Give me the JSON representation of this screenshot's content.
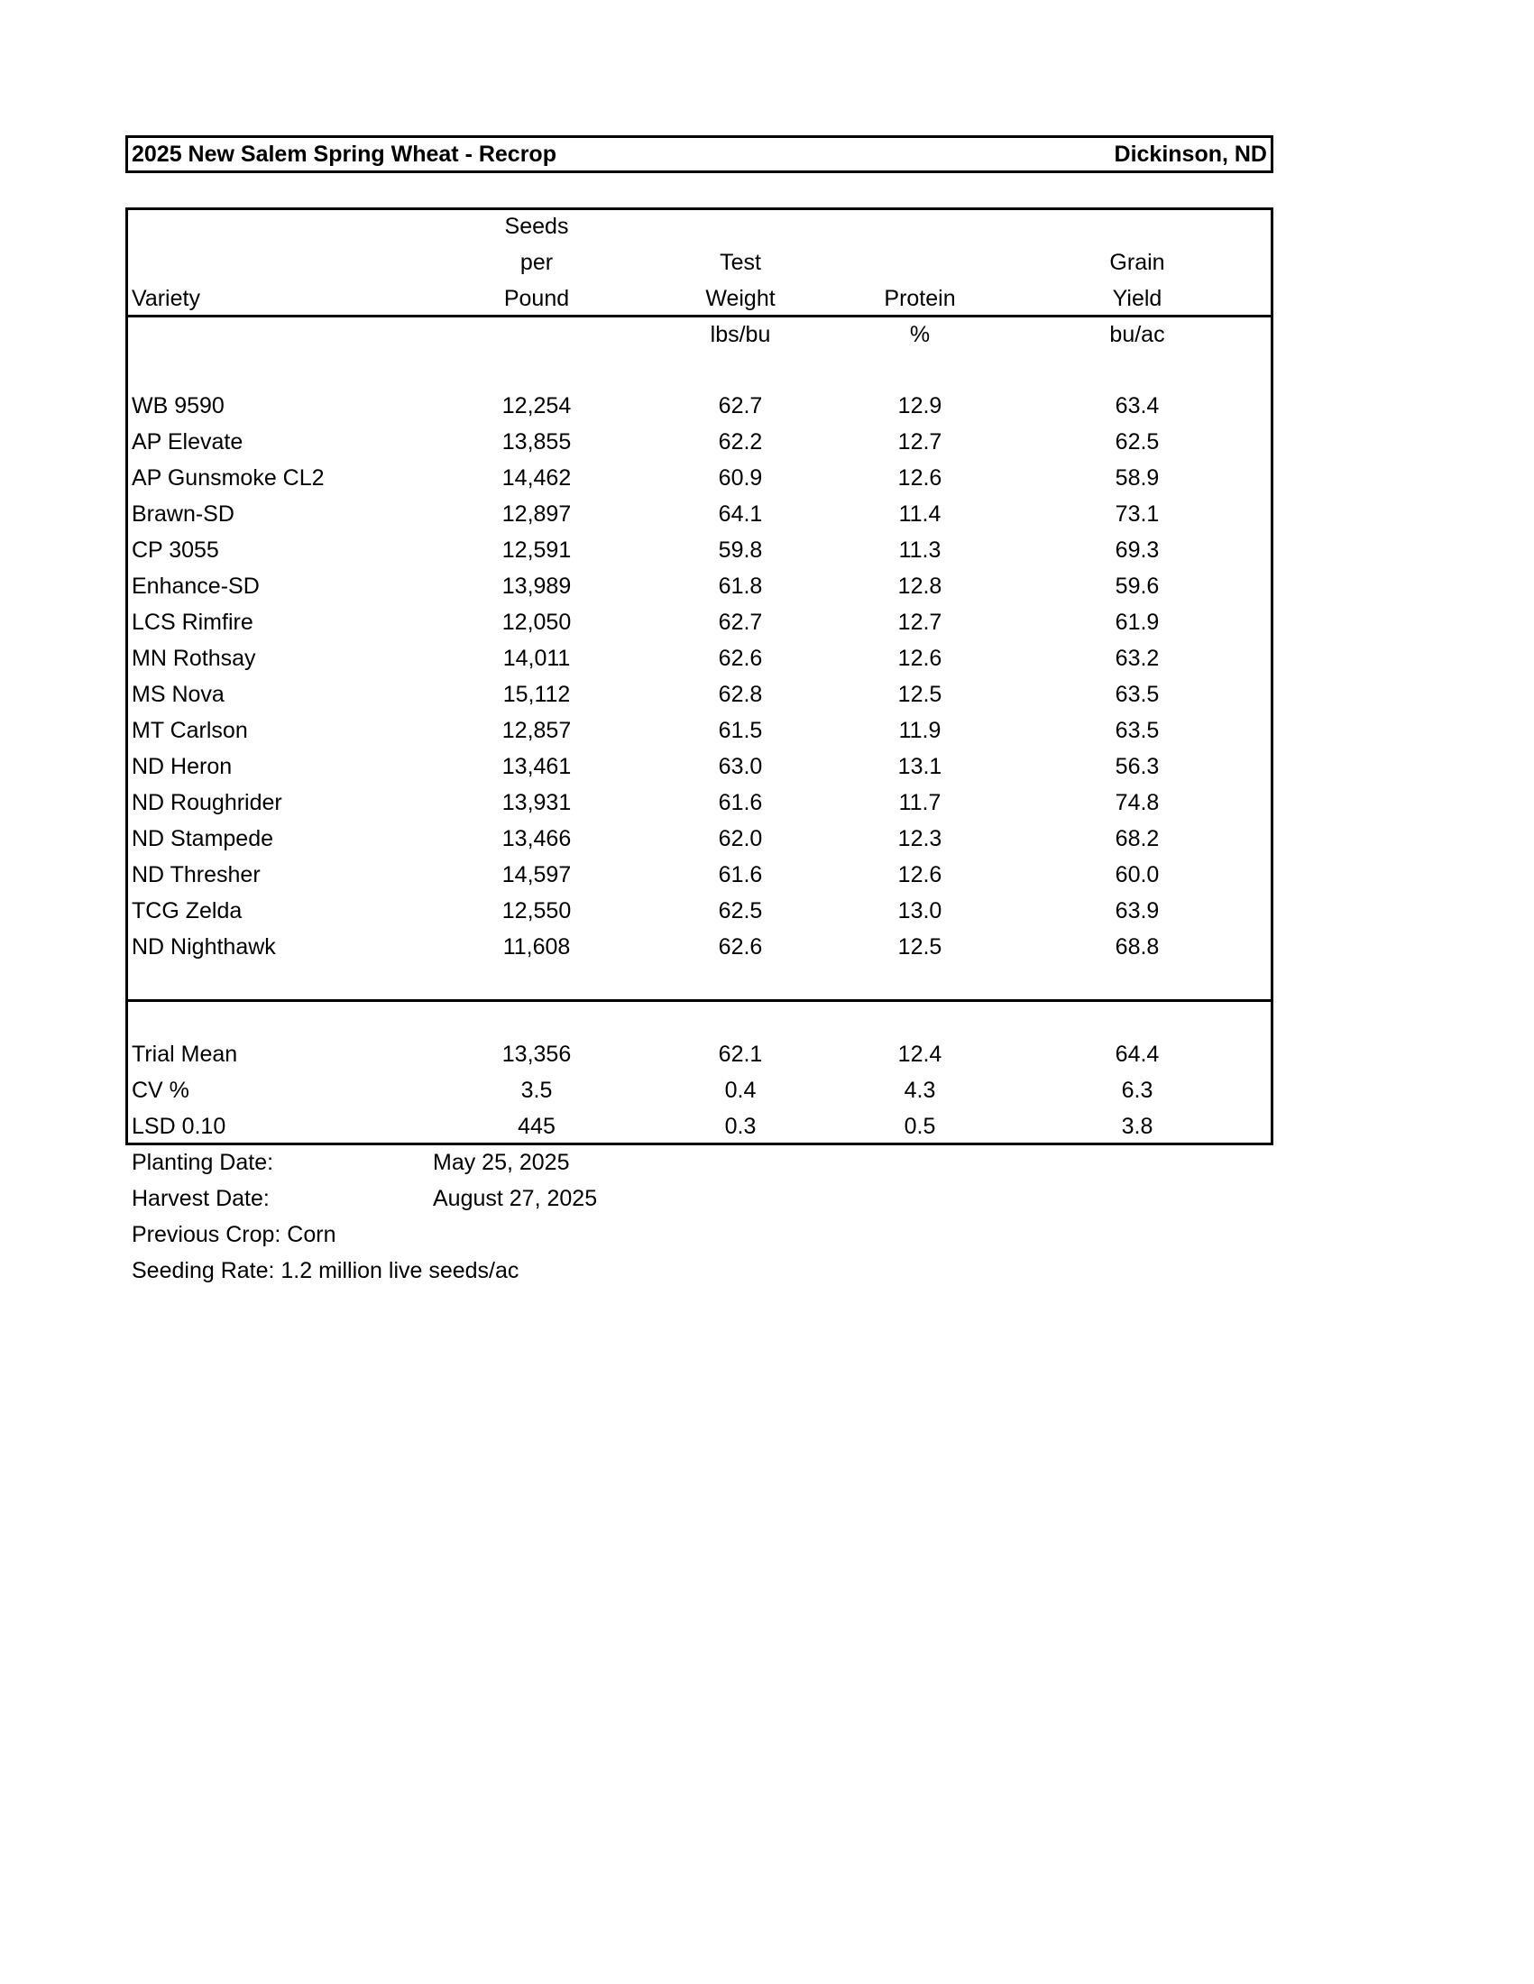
{
  "title": "2025 New Salem Spring Wheat - Recrop",
  "location": "Dickinson, ND",
  "headers": {
    "variety": "Variety",
    "seeds": [
      "Seeds",
      "per",
      "Pound"
    ],
    "test_weight": [
      "Test",
      "Weight"
    ],
    "protein": [
      "Protein"
    ],
    "yield": [
      "Grain",
      "Yield"
    ]
  },
  "units": {
    "seeds": "",
    "test_weight": "lbs/bu",
    "protein": "%",
    "yield": "bu/ac"
  },
  "rows": [
    [
      "WB 9590",
      "12,254",
      "62.7",
      "12.9",
      "63.4"
    ],
    [
      "AP Elevate",
      "13,855",
      "62.2",
      "12.7",
      "62.5"
    ],
    [
      "AP Gunsmoke CL2",
      "14,462",
      "60.9",
      "12.6",
      "58.9"
    ],
    [
      "Brawn-SD",
      "12,897",
      "64.1",
      "11.4",
      "73.1"
    ],
    [
      "CP 3055",
      "12,591",
      "59.8",
      "11.3",
      "69.3"
    ],
    [
      "Enhance-SD",
      "13,989",
      "61.8",
      "12.8",
      "59.6"
    ],
    [
      "LCS Rimfire",
      "12,050",
      "62.7",
      "12.7",
      "61.9"
    ],
    [
      "MN Rothsay",
      "14,011",
      "62.6",
      "12.6",
      "63.2"
    ],
    [
      "MS Nova",
      "15,112",
      "62.8",
      "12.5",
      "63.5"
    ],
    [
      "MT Carlson",
      "12,857",
      "61.5",
      "11.9",
      "63.5"
    ],
    [
      "ND Heron",
      "13,461",
      "63.0",
      "13.1",
      "56.3"
    ],
    [
      "ND Roughrider",
      "13,931",
      "61.6",
      "11.7",
      "74.8"
    ],
    [
      "ND Stampede",
      "13,466",
      "62.0",
      "12.3",
      "68.2"
    ],
    [
      "ND Thresher",
      "14,597",
      "61.6",
      "12.6",
      "60.0"
    ],
    [
      "TCG Zelda",
      "12,550",
      "62.5",
      "13.0",
      "63.9"
    ],
    [
      "ND Nighthawk",
      "11,608",
      "62.6",
      "12.5",
      "68.8"
    ]
  ],
  "stats": [
    [
      "Trial Mean",
      "13,356",
      "62.1",
      "12.4",
      "64.4"
    ],
    [
      "CV %",
      "3.5",
      "0.4",
      "4.3",
      "6.3"
    ],
    [
      "LSD 0.10",
      "445",
      "0.3",
      "0.5",
      "3.8"
    ]
  ],
  "footer": [
    {
      "label": "Planting Date:",
      "value": "May 25, 2025"
    },
    {
      "label": "Harvest Date:",
      "value": "August 27, 2025"
    },
    {
      "label": "Previous Crop: Corn",
      "value": ""
    },
    {
      "label": "Seeding Rate:  1.2 million live seeds/ac",
      "value": ""
    }
  ]
}
